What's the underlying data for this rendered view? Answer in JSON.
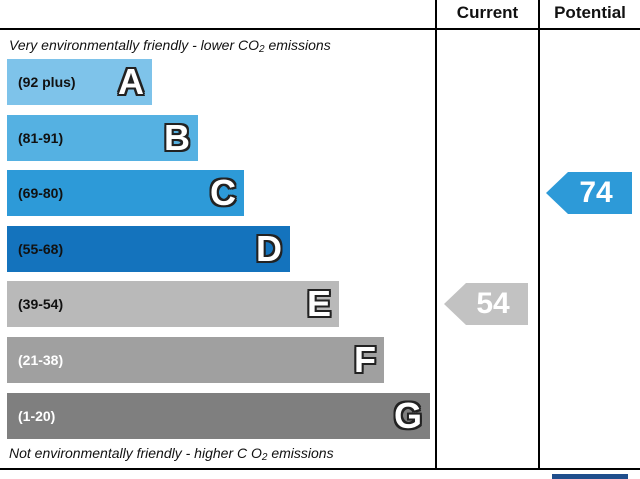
{
  "header": {
    "current_label": "Current",
    "potential_label": "Potential"
  },
  "top_caption": {
    "text": "Very environmentally friendly - lower C",
    "sup": "O",
    "sub": "2",
    "tail": " emissions"
  },
  "bottom_caption": {
    "text": "Not environmentally friendly - higher C ",
    "sup": "O",
    "sub": "2",
    "tail": " emissions"
  },
  "chart_data": {
    "type": "bar",
    "categories": [
      "A",
      "B",
      "C",
      "D",
      "E",
      "F",
      "G"
    ],
    "ranges": [
      "(92 plus)",
      "(81-91)",
      "(69-80)",
      "(55-68)",
      "(39-54)",
      "(21-38)",
      "(1-20)"
    ],
    "range_min": [
      92,
      81,
      69,
      55,
      39,
      21,
      1
    ],
    "range_max": [
      null,
      91,
      80,
      68,
      54,
      38,
      20
    ],
    "band_colors": [
      "#7ec3ea",
      "#55b1e2",
      "#2d9ad8",
      "#1473bd",
      "#b9b9b9",
      "#a0a0a0",
      "#7f7f7f"
    ],
    "range_text_colors": [
      "#111111",
      "#111111",
      "#111111",
      "#111111",
      "#111111",
      "#ffffff",
      "#ffffff"
    ],
    "current": {
      "value": 54,
      "band": "E",
      "color": "#c2c2c2"
    },
    "potential": {
      "value": 74,
      "band": "C",
      "color": "#2d9ad8"
    }
  }
}
